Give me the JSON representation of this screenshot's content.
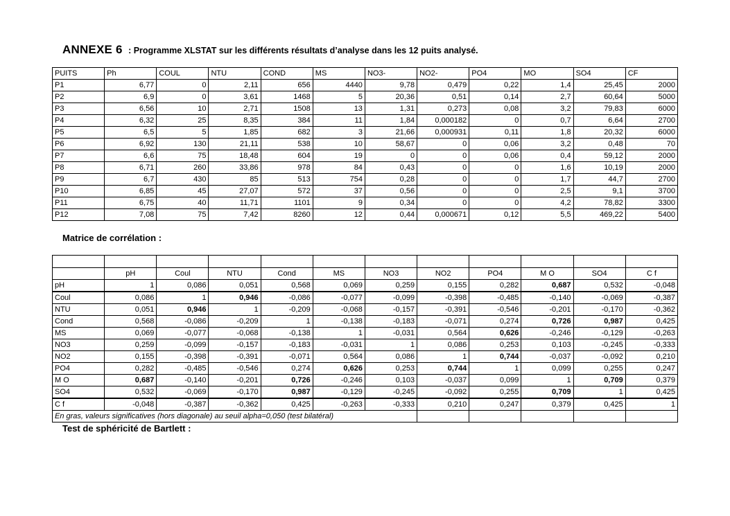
{
  "page": {
    "title_main": "ANNEXE 6",
    "title_rest": ": Programme XLSTAT sur les différents résultats d’analyse dans les 12 puits analysé."
  },
  "wells_table": {
    "columns": [
      "PUITS",
      "Ph",
      "COUL",
      "NTU",
      "COND",
      "MS",
      "NO3-",
      "NO2-",
      "PO4",
      "MO",
      "SO4",
      "CF"
    ],
    "rows": [
      [
        "P1",
        "6,77",
        "0",
        "2,11",
        "656",
        "4440",
        "9,78",
        "0,479",
        "0,22",
        "1,4",
        "25,45",
        "2000"
      ],
      [
        "P2",
        "6,9",
        "0",
        "3,61",
        "1468",
        "5",
        "20,36",
        "0,51",
        "0,14",
        "2,7",
        "60,64",
        "5000"
      ],
      [
        "P3",
        "6,56",
        "10",
        "2,71",
        "1508",
        "13",
        "1,31",
        "0,273",
        "0,08",
        "3,2",
        "79,83",
        "6000"
      ],
      [
        "P4",
        "6,32",
        "25",
        "8,35",
        "384",
        "11",
        "1,84",
        "0,000182",
        "0",
        "0,7",
        "6,64",
        "2700"
      ],
      [
        "P5",
        "6,5",
        "5",
        "1,85",
        "682",
        "3",
        "21,66",
        "0,000931",
        "0,11",
        "1,8",
        "20,32",
        "6000"
      ],
      [
        "P6",
        "6,92",
        "130",
        "21,11",
        "538",
        "10",
        "58,67",
        "0",
        "0,06",
        "3,2",
        "0,48",
        "70"
      ],
      [
        "P7",
        "6,6",
        "75",
        "18,48",
        "604",
        "19",
        "0",
        "0",
        "0,06",
        "0,4",
        "59,12",
        "2000"
      ],
      [
        "P8",
        "6,71",
        "260",
        "33,86",
        "978",
        "84",
        "0,43",
        "0",
        "0",
        "1,6",
        "10,19",
        "2000"
      ],
      [
        "P9",
        "6,7",
        "430",
        "85",
        "513",
        "754",
        "0,28",
        "0",
        "0",
        "1,7",
        "44,7",
        "2700"
      ],
      [
        "P10",
        "6,85",
        "45",
        "27,07",
        "572",
        "37",
        "0,56",
        "0",
        "0",
        "2,5",
        "9,1",
        "3700"
      ],
      [
        "P11",
        "6,75",
        "40",
        "11,71",
        "1101",
        "9",
        "0,34",
        "0",
        "0",
        "4,2",
        "78,82",
        "3300"
      ],
      [
        "P12",
        "7,08",
        "75",
        "7,42",
        "8260",
        "12",
        "0,44",
        "0,000671",
        "0,12",
        "5,5",
        "469,22",
        "5400"
      ]
    ]
  },
  "correlation": {
    "heading": "Matrice de corrélation :",
    "columns": [
      "",
      "pH",
      "Coul",
      "NTU",
      "Cond",
      "MS",
      "NO3",
      "NO2",
      "PO4",
      "M O",
      "SO4",
      "C f"
    ],
    "rows": [
      {
        "label": "pH",
        "values": [
          "1",
          "0,086",
          "0,051",
          "0,568",
          "0,069",
          "0,259",
          "0,155",
          "0,282",
          "0,687",
          "0,532",
          "-0,048"
        ],
        "bold": [
          8
        ],
        "separator_after": true
      },
      {
        "label": "Coul",
        "values": [
          "0,086",
          "1",
          "0,946",
          "-0,086",
          "-0,077",
          "-0,099",
          "-0,398",
          "-0,485",
          "-0,140",
          "-0,069",
          "-0,387"
        ],
        "bold": [
          2
        ],
        "separator_after": false
      },
      {
        "label": "NTU",
        "values": [
          "0,051",
          "0,946",
          "1",
          "-0,209",
          "-0,068",
          "-0,157",
          "-0,391",
          "-0,546",
          "-0,201",
          "-0,170",
          "-0,362"
        ],
        "bold": [
          1
        ],
        "separator_after": false
      },
      {
        "label": "Cond",
        "values": [
          "0,568",
          "-0,086",
          "-0,209",
          "1",
          "-0,138",
          "-0,183",
          "-0,071",
          "0,274",
          "0,726",
          "0,987",
          "0,425"
        ],
        "bold": [
          8,
          9
        ],
        "separator_after": false
      },
      {
        "label": "MS",
        "values": [
          "0,069",
          "-0,077",
          "-0,068",
          "-0,138",
          "1",
          "-0,031",
          "0,564",
          "0,626",
          "-0,246",
          "-0,129",
          "-0,263"
        ],
        "bold": [
          7
        ],
        "separator_after": false
      },
      {
        "label": "NO3",
        "values": [
          "0,259",
          "-0,099",
          "-0,157",
          "-0,183",
          "-0,031",
          "1",
          "0,086",
          "0,253",
          "0,103",
          "-0,245",
          "-0,333"
        ],
        "bold": [],
        "separator_after": false
      },
      {
        "label": "NO2",
        "values": [
          "0,155",
          "-0,398",
          "-0,391",
          "-0,071",
          "0,564",
          "0,086",
          "1",
          "0,744",
          "-0,037",
          "-0,092",
          "0,210"
        ],
        "bold": [
          7
        ],
        "separator_after": false
      },
      {
        "label": "PO4",
        "values": [
          "0,282",
          "-0,485",
          "-0,546",
          "0,274",
          "0,626",
          "0,253",
          "0,744",
          "1",
          "0,099",
          "0,255",
          "0,247"
        ],
        "bold": [
          4,
          6
        ],
        "separator_after": false
      },
      {
        "label": "M O",
        "values": [
          "0,687",
          "-0,140",
          "-0,201",
          "0,726",
          "-0,246",
          "0,103",
          "-0,037",
          "0,099",
          "1",
          "0,709",
          "0,379"
        ],
        "bold": [
          0,
          3,
          9
        ],
        "separator_after": false
      },
      {
        "label": "SO4",
        "values": [
          "0,532",
          "-0,069",
          "-0,170",
          "0,987",
          "-0,129",
          "-0,245",
          "-0,092",
          "0,255",
          "0,709",
          "1",
          "0,425"
        ],
        "bold": [
          3,
          8
        ],
        "separator_after": true
      },
      {
        "label": "C f",
        "values": [
          "-0,048",
          "-0,387",
          "-0,362",
          "0,425",
          "-0,263",
          "-0,333",
          "0,210",
          "0,247",
          "0,379",
          "0,425",
          "1"
        ],
        "bold": [],
        "separator_after": false
      }
    ],
    "footnote": "En gras, valeurs significatives (hors diagonale) au seuil alpha=0,050 (test bilatéral)",
    "footnote_colspan": 7
  },
  "bartlett": {
    "heading": "Test de sphéricité de Bartlett :"
  }
}
